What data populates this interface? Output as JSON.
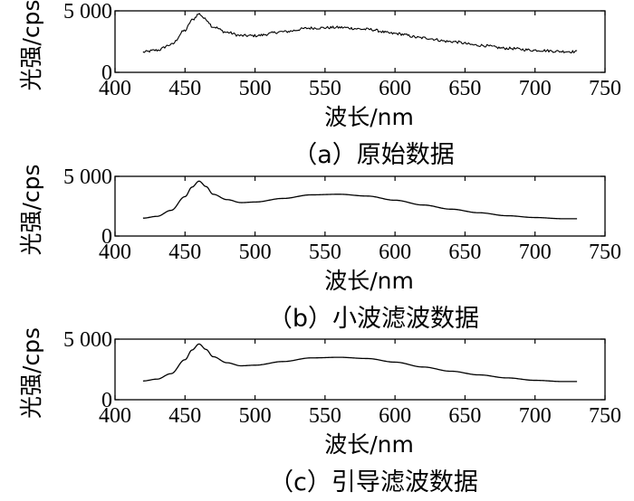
{
  "chart_data": [
    {
      "type": "line",
      "title": "（a）原始数据",
      "xlabel": "波长/nm",
      "ylabel": "光强/cps",
      "xlim": [
        400,
        750
      ],
      "ylim": [
        0,
        5000
      ],
      "xticks": [
        400,
        450,
        500,
        550,
        600,
        650,
        700,
        750
      ],
      "yticks": [
        {
          "value": 0,
          "label": "0"
        },
        {
          "value": 5000,
          "label": "5 000"
        }
      ],
      "grid": false,
      "noisy": true,
      "series": [
        {
          "x": [
            420,
            430,
            440,
            450,
            455,
            460,
            465,
            470,
            480,
            490,
            500,
            520,
            540,
            560,
            580,
            600,
            620,
            640,
            660,
            680,
            700,
            720,
            730
          ],
          "y": [
            1650,
            1800,
            2250,
            3400,
            4250,
            4750,
            4300,
            3700,
            3250,
            2980,
            2980,
            3300,
            3600,
            3650,
            3500,
            3150,
            2800,
            2500,
            2200,
            1950,
            1800,
            1700,
            1680
          ]
        }
      ]
    },
    {
      "type": "line",
      "title": "（b）小波滤波数据",
      "xlabel": "波长/nm",
      "ylabel": "光强/cps",
      "xlim": [
        400,
        750
      ],
      "ylim": [
        0,
        5000
      ],
      "xticks": [
        400,
        450,
        500,
        550,
        600,
        650,
        700,
        750
      ],
      "yticks": [
        {
          "value": 0,
          "label": "0"
        },
        {
          "value": 5000,
          "label": "5 000"
        }
      ],
      "grid": false,
      "noisy": false,
      "series": [
        {
          "x": [
            420,
            430,
            440,
            450,
            455,
            460,
            465,
            470,
            480,
            490,
            500,
            520,
            540,
            560,
            580,
            600,
            620,
            640,
            660,
            680,
            700,
            720,
            730
          ],
          "y": [
            1500,
            1650,
            2150,
            3300,
            4100,
            4600,
            4150,
            3500,
            3050,
            2800,
            2850,
            3150,
            3450,
            3500,
            3350,
            3000,
            2600,
            2250,
            1950,
            1700,
            1550,
            1450,
            1450
          ]
        }
      ]
    },
    {
      "type": "line",
      "title": "（c）引导滤波数据",
      "xlabel": "波长/nm",
      "ylabel": "光强/cps",
      "xlim": [
        400,
        750
      ],
      "ylim": [
        0,
        5000
      ],
      "xticks": [
        400,
        450,
        500,
        550,
        600,
        650,
        700,
        750
      ],
      "yticks": [
        {
          "value": 0,
          "label": "0"
        },
        {
          "value": 5000,
          "label": "5 000"
        }
      ],
      "grid": false,
      "noisy": false,
      "series": [
        {
          "x": [
            420,
            430,
            440,
            450,
            455,
            460,
            465,
            470,
            480,
            490,
            500,
            520,
            540,
            560,
            580,
            600,
            620,
            640,
            660,
            680,
            700,
            720,
            730
          ],
          "y": [
            1550,
            1700,
            2150,
            3300,
            4100,
            4600,
            4150,
            3550,
            3050,
            2800,
            2850,
            3150,
            3450,
            3500,
            3400,
            3100,
            2700,
            2350,
            2050,
            1800,
            1600,
            1500,
            1500
          ]
        }
      ]
    }
  ]
}
